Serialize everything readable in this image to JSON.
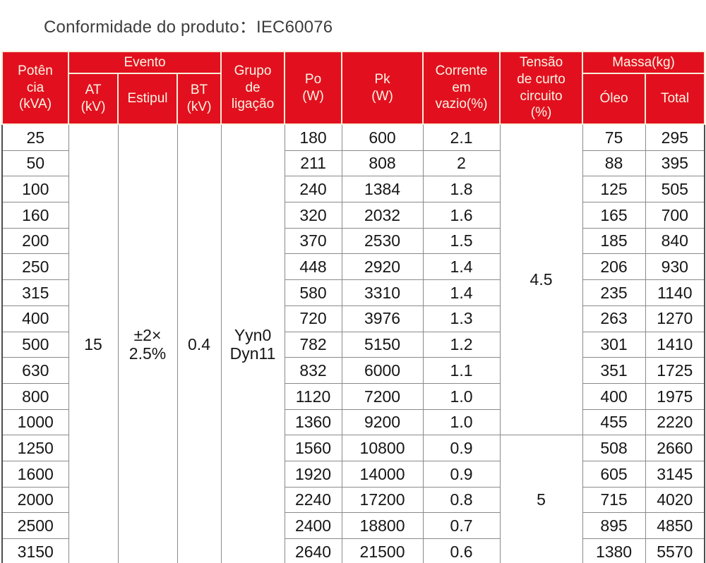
{
  "title": "Conformidade do produto：IEC60076",
  "colors": {
    "page_bg": "#ffffff",
    "title_text": "#3d3d3d",
    "header_bg": "#e2101f",
    "header_text": "#fcf5e4",
    "header_border": "#f8eed8",
    "grid_line": "#8a8a8a",
    "outer_border": "#4e4e4e",
    "data_text": "#161616"
  },
  "header": {
    "potencia": "Potên\ncia\n(kVA)",
    "evento": "Evento",
    "at": "AT\n(kV)",
    "estipul": "Estipul",
    "bt": "BT\n(kV)",
    "grupo": "Grupo\nde\nligação",
    "po": "Po\n(W)",
    "pk": "Pk\n(W)",
    "corrente": "Corrente\nem\nvazio(%)",
    "tensao": "Tensão\nde curto\ncircuito\n(%)",
    "massa": "Massa(kg)",
    "oleo": "Óleo",
    "total": "Total"
  },
  "merged_display": {
    "at": "15",
    "estipul": "±2×\n2.5%",
    "bt": "0.4",
    "grupo": "Yyn0\nDyn11"
  },
  "chart_data": {
    "type": "table",
    "title": "Conformidade do produto：IEC60076",
    "columns": [
      "Potência (kVA)",
      "Evento — AT (kV)",
      "Evento — Estipul",
      "Evento — BT (kV)",
      "Grupo de ligação",
      "Po (W)",
      "Pk (W)",
      "Corrente em vazio(%)",
      "Tensão de curto circuito (%)",
      "Massa(kg) — Óleo",
      "Massa(kg) — Total"
    ],
    "merged_values": {
      "at_kv": "15",
      "estipul": "±2× 2.5%",
      "bt_kv": "0.4",
      "grupo_ligacao": "Yyn0 Dyn11",
      "tensao_groups": [
        {
          "value": "4.5",
          "row_count": 12
        },
        {
          "value": "5",
          "row_count": 5
        }
      ]
    },
    "rows": [
      {
        "kva": "25",
        "po": "180",
        "pk": "600",
        "corrente": "2.1",
        "oleo": "75",
        "total": "295"
      },
      {
        "kva": "50",
        "po": "211",
        "pk": "808",
        "corrente": "2",
        "oleo": "88",
        "total": "395"
      },
      {
        "kva": "100",
        "po": "240",
        "pk": "1384",
        "corrente": "1.8",
        "oleo": "125",
        "total": "505"
      },
      {
        "kva": "160",
        "po": "320",
        "pk": "2032",
        "corrente": "1.6",
        "oleo": "165",
        "total": "700"
      },
      {
        "kva": "200",
        "po": "370",
        "pk": "2530",
        "corrente": "1.5",
        "oleo": "185",
        "total": "840"
      },
      {
        "kva": "250",
        "po": "448",
        "pk": "2920",
        "corrente": "1.4",
        "oleo": "206",
        "total": "930"
      },
      {
        "kva": "315",
        "po": "580",
        "pk": "3310",
        "corrente": "1.4",
        "oleo": "235",
        "total": "1140"
      },
      {
        "kva": "400",
        "po": "720",
        "pk": "3976",
        "corrente": "1.3",
        "oleo": "263",
        "total": "1270"
      },
      {
        "kva": "500",
        "po": "782",
        "pk": "5150",
        "corrente": "1.2",
        "oleo": "301",
        "total": "1410"
      },
      {
        "kva": "630",
        "po": "832",
        "pk": "6000",
        "corrente": "1.1",
        "oleo": "351",
        "total": "1725"
      },
      {
        "kva": "800",
        "po": "1120",
        "pk": "7200",
        "corrente": "1.0",
        "oleo": "400",
        "total": "1975"
      },
      {
        "kva": "1000",
        "po": "1360",
        "pk": "9200",
        "corrente": "1.0",
        "oleo": "455",
        "total": "2220"
      },
      {
        "kva": "1250",
        "po": "1560",
        "pk": "10800",
        "corrente": "0.9",
        "oleo": "508",
        "total": "2660"
      },
      {
        "kva": "1600",
        "po": "1920",
        "pk": "14000",
        "corrente": "0.9",
        "oleo": "605",
        "total": "3145"
      },
      {
        "kva": "2000",
        "po": "2240",
        "pk": "17200",
        "corrente": "0.8",
        "oleo": "715",
        "total": "4020"
      },
      {
        "kva": "2500",
        "po": "2400",
        "pk": "18800",
        "corrente": "0.7",
        "oleo": "895",
        "total": "4850"
      },
      {
        "kva": "3150",
        "po": "2640",
        "pk": "21500",
        "corrente": "0.6",
        "oleo": "1380",
        "total": "5570"
      }
    ]
  }
}
